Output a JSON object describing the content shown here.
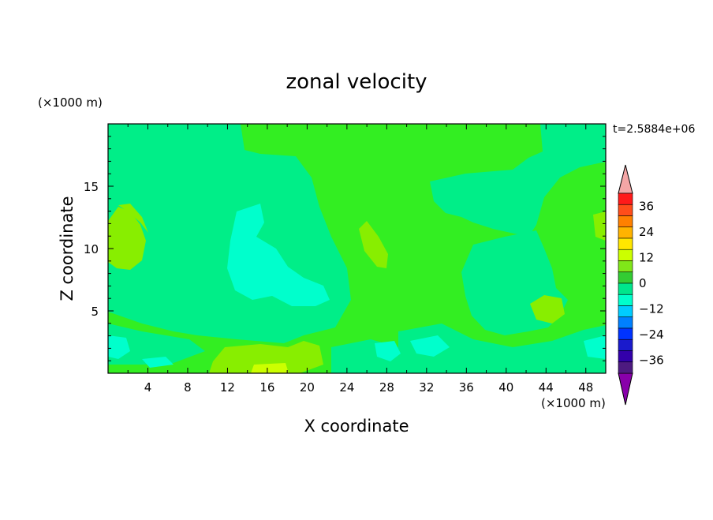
{
  "title": "zonal velocity",
  "time_label": "t=2.5884e+06",
  "chart_data": {
    "type": "heatmap",
    "title": "zonal velocity",
    "xlabel": "X coordinate",
    "ylabel": "Z coordinate",
    "x_unit_label": "(×1000 m)",
    "y_unit_label": "(×1000 m)",
    "xlim": [
      0,
      50
    ],
    "ylim": [
      0,
      20
    ],
    "x_ticks": [
      4,
      8,
      12,
      16,
      20,
      24,
      28,
      32,
      36,
      40,
      44,
      48
    ],
    "y_ticks": [
      5,
      10,
      15
    ],
    "colorbar": {
      "ticks": [
        36,
        24,
        12,
        0,
        -12,
        -24,
        -36
      ],
      "levels": [
        42,
        36,
        30,
        24,
        18,
        12,
        6,
        0,
        -6,
        -12,
        -18,
        -24,
        -30,
        -36,
        -42
      ],
      "colors": [
        "#ff1a1a",
        "#ff4d1a",
        "#ff8000",
        "#ffb300",
        "#ffe600",
        "#ccff00",
        "#80e619",
        "#33cc33",
        "#00e68c",
        "#00ffcc",
        "#00ccff",
        "#0080ff",
        "#0033ff",
        "#1a1acc",
        "#3300aa",
        "#4d1a80"
      ],
      "over_color": "#f4a6a6",
      "under_color": "#8800aa"
    },
    "field_colors": {
      "weak_positive": "#33ee22",
      "weak_negative": "#00ee88",
      "moderate_negative": "#00ffcc",
      "moderate_positive": "#88ee00"
    }
  }
}
